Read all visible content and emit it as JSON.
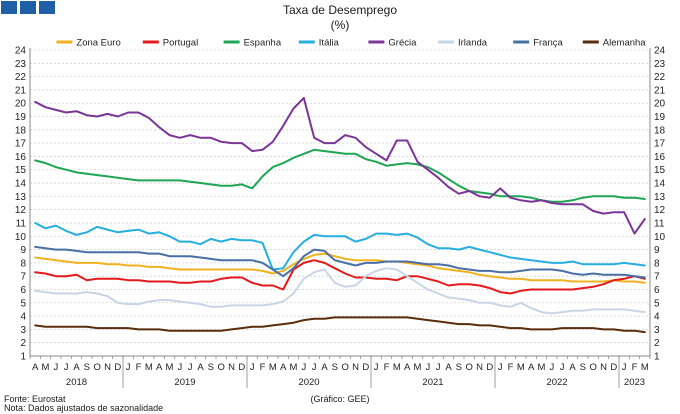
{
  "title": "Taxa de Desemprego",
  "subtitle": "(%)",
  "source": "Fonte: Eurostat",
  "note": "Nota: Dados ajustados de sazonalidade",
  "credit": "(Gráfico: GEE)",
  "chart_data": {
    "type": "line",
    "title": "Taxa de Desemprego",
    "subtitle": "(%)",
    "ylim": [
      1,
      24
    ],
    "yticks": [
      1,
      2,
      3,
      4,
      5,
      6,
      7,
      8,
      9,
      10,
      11,
      12,
      13,
      14,
      15,
      16,
      17,
      18,
      19,
      20,
      21,
      22,
      23,
      24
    ],
    "grid": true,
    "legend_position": "top",
    "x_month_labels": [
      "A",
      "M",
      "J",
      "J",
      "A",
      "S",
      "O",
      "N",
      "D",
      "J",
      "F",
      "M",
      "A",
      "M",
      "J",
      "J",
      "A",
      "S",
      "O",
      "N",
      "D",
      "J",
      "F",
      "M",
      "A",
      "M",
      "J",
      "J",
      "A",
      "S",
      "O",
      "N",
      "D",
      "J",
      "F",
      "M",
      "A",
      "M",
      "J",
      "J",
      "A",
      "S",
      "O",
      "N",
      "D",
      "J",
      "F",
      "M",
      "A",
      "M",
      "J",
      "J",
      "A",
      "S",
      "O",
      "N",
      "D",
      "J",
      "F",
      "M"
    ],
    "x_start": "2018-04",
    "x_end": "2023-03",
    "year_labels": [
      {
        "label": "2018",
        "from": 0,
        "to": 8
      },
      {
        "label": "2019",
        "from": 9,
        "to": 20
      },
      {
        "label": "2020",
        "from": 21,
        "to": 32
      },
      {
        "label": "2021",
        "from": 33,
        "to": 44
      },
      {
        "label": "2022",
        "from": 45,
        "to": 56
      },
      {
        "label": "2023",
        "from": 57,
        "to": 59
      }
    ],
    "series": [
      {
        "name": "Zona Euro",
        "color": "#f2b21f",
        "values": [
          8.4,
          8.3,
          8.2,
          8.1,
          8.0,
          8.0,
          8.0,
          7.9,
          7.9,
          7.8,
          7.8,
          7.7,
          7.7,
          7.6,
          7.5,
          7.5,
          7.5,
          7.5,
          7.5,
          7.5,
          7.5,
          7.5,
          7.4,
          7.2,
          7.4,
          7.9,
          8.3,
          8.6,
          8.7,
          8.5,
          8.3,
          8.2,
          8.2,
          8.2,
          8.1,
          8.1,
          8.0,
          7.9,
          7.8,
          7.6,
          7.5,
          7.4,
          7.3,
          7.1,
          7.0,
          6.9,
          6.8,
          6.8,
          6.7,
          6.7,
          6.7,
          6.7,
          6.6,
          6.6,
          6.6,
          6.6,
          6.7,
          6.6,
          6.6,
          6.5
        ]
      },
      {
        "name": "Portugal",
        "color": "#e41a1c",
        "values": [
          7.3,
          7.2,
          7.0,
          7.0,
          7.1,
          6.7,
          6.8,
          6.8,
          6.8,
          6.7,
          6.7,
          6.6,
          6.6,
          6.6,
          6.5,
          6.5,
          6.6,
          6.6,
          6.8,
          6.9,
          6.9,
          6.5,
          6.3,
          6.3,
          6.0,
          7.5,
          8.0,
          8.2,
          8.0,
          7.6,
          7.2,
          6.9,
          6.9,
          6.8,
          6.8,
          6.7,
          7.0,
          7.0,
          6.8,
          6.6,
          6.3,
          6.4,
          6.4,
          6.3,
          6.1,
          5.8,
          5.7,
          5.9,
          6.0,
          6.0,
          6.0,
          6.0,
          6.0,
          6.1,
          6.2,
          6.4,
          6.7,
          6.8,
          7.0,
          6.8
        ]
      },
      {
        "name": "Espanha",
        "color": "#1fa554",
        "values": [
          15.7,
          15.5,
          15.2,
          15.0,
          14.8,
          14.7,
          14.6,
          14.5,
          14.4,
          14.3,
          14.2,
          14.2,
          14.2,
          14.2,
          14.2,
          14.1,
          14.0,
          13.9,
          13.8,
          13.8,
          13.9,
          13.6,
          14.5,
          15.2,
          15.5,
          15.9,
          16.2,
          16.5,
          16.4,
          16.3,
          16.2,
          16.2,
          15.8,
          15.6,
          15.3,
          15.4,
          15.5,
          15.4,
          15.2,
          14.8,
          14.3,
          13.8,
          13.4,
          13.3,
          13.2,
          13.0,
          13.0,
          13.0,
          12.9,
          12.7,
          12.6,
          12.6,
          12.7,
          12.9,
          13.0,
          13.0,
          13.0,
          12.9,
          12.9,
          12.8
        ]
      },
      {
        "name": "Itália",
        "color": "#27aee0",
        "values": [
          11.0,
          10.6,
          10.8,
          10.4,
          10.1,
          10.3,
          10.7,
          10.5,
          10.3,
          10.4,
          10.5,
          10.2,
          10.3,
          10.0,
          9.6,
          9.6,
          9.4,
          9.8,
          9.6,
          9.8,
          9.7,
          9.7,
          9.5,
          7.5,
          7.6,
          8.8,
          9.6,
          10.1,
          10.0,
          10.0,
          10.0,
          9.6,
          9.8,
          10.2,
          10.2,
          10.1,
          10.2,
          9.9,
          9.4,
          9.1,
          9.1,
          9.0,
          9.2,
          9.0,
          8.8,
          8.6,
          8.4,
          8.3,
          8.2,
          8.1,
          8.0,
          8.0,
          8.1,
          7.9,
          7.9,
          7.9,
          7.9,
          8.0,
          7.9,
          7.8
        ]
      },
      {
        "name": "Grécia",
        "color": "#7a3596",
        "values": [
          20.1,
          19.7,
          19.5,
          19.3,
          19.4,
          19.1,
          19.0,
          19.2,
          19.0,
          19.3,
          19.3,
          18.9,
          18.2,
          17.6,
          17.4,
          17.6,
          17.4,
          17.4,
          17.1,
          17.0,
          17.0,
          16.4,
          16.5,
          17.1,
          18.3,
          19.6,
          20.4,
          17.4,
          17.0,
          17.0,
          17.6,
          17.4,
          16.7,
          16.2,
          15.7,
          17.2,
          17.2,
          15.6,
          15.0,
          14.4,
          13.7,
          13.2,
          13.4,
          13.0,
          12.9,
          13.6,
          12.9,
          12.7,
          12.6,
          12.7,
          12.5,
          12.4,
          12.4,
          12.4,
          11.9,
          11.7,
          11.8,
          11.8,
          10.2,
          11.3
        ]
      },
      {
        "name": "Irlanda",
        "color": "#c8d5e6",
        "values": [
          5.9,
          5.8,
          5.7,
          5.7,
          5.7,
          5.8,
          5.7,
          5.5,
          5.0,
          4.9,
          4.9,
          5.1,
          5.2,
          5.2,
          5.1,
          5.0,
          4.9,
          4.7,
          4.7,
          4.8,
          4.8,
          4.8,
          4.8,
          4.9,
          5.1,
          5.7,
          6.8,
          7.3,
          7.5,
          6.5,
          6.2,
          6.3,
          7.0,
          7.4,
          7.6,
          7.5,
          7.0,
          6.5,
          6.0,
          5.7,
          5.4,
          5.3,
          5.2,
          5.0,
          5.0,
          4.8,
          4.7,
          5.0,
          4.6,
          4.3,
          4.2,
          4.3,
          4.4,
          4.4,
          4.5,
          4.5,
          4.5,
          4.5,
          4.4,
          4.3
        ]
      },
      {
        "name": "França",
        "color": "#4a6fa5",
        "values": [
          9.2,
          9.1,
          9.0,
          9.0,
          8.9,
          8.8,
          8.8,
          8.8,
          8.8,
          8.8,
          8.8,
          8.7,
          8.7,
          8.5,
          8.5,
          8.5,
          8.4,
          8.3,
          8.2,
          8.2,
          8.2,
          8.2,
          8.0,
          7.5,
          7.0,
          7.6,
          8.5,
          9.0,
          8.9,
          8.2,
          8.0,
          7.8,
          8.0,
          8.0,
          8.1,
          8.1,
          8.1,
          8.0,
          7.9,
          7.9,
          7.8,
          7.6,
          7.5,
          7.4,
          7.4,
          7.3,
          7.3,
          7.4,
          7.5,
          7.5,
          7.5,
          7.4,
          7.2,
          7.1,
          7.2,
          7.1,
          7.1,
          7.1,
          7.0,
          6.9
        ]
      },
      {
        "name": "Alemanha",
        "color": "#5a2d0c",
        "values": [
          3.3,
          3.2,
          3.2,
          3.2,
          3.2,
          3.2,
          3.1,
          3.1,
          3.1,
          3.1,
          3.0,
          3.0,
          3.0,
          2.9,
          2.9,
          2.9,
          2.9,
          2.9,
          2.9,
          3.0,
          3.1,
          3.2,
          3.2,
          3.3,
          3.4,
          3.5,
          3.7,
          3.8,
          3.8,
          3.9,
          3.9,
          3.9,
          3.9,
          3.9,
          3.9,
          3.9,
          3.9,
          3.8,
          3.7,
          3.6,
          3.5,
          3.4,
          3.4,
          3.3,
          3.3,
          3.2,
          3.1,
          3.1,
          3.0,
          3.0,
          3.0,
          3.1,
          3.1,
          3.1,
          3.1,
          3.0,
          3.0,
          2.9,
          2.9,
          2.8
        ]
      }
    ]
  }
}
